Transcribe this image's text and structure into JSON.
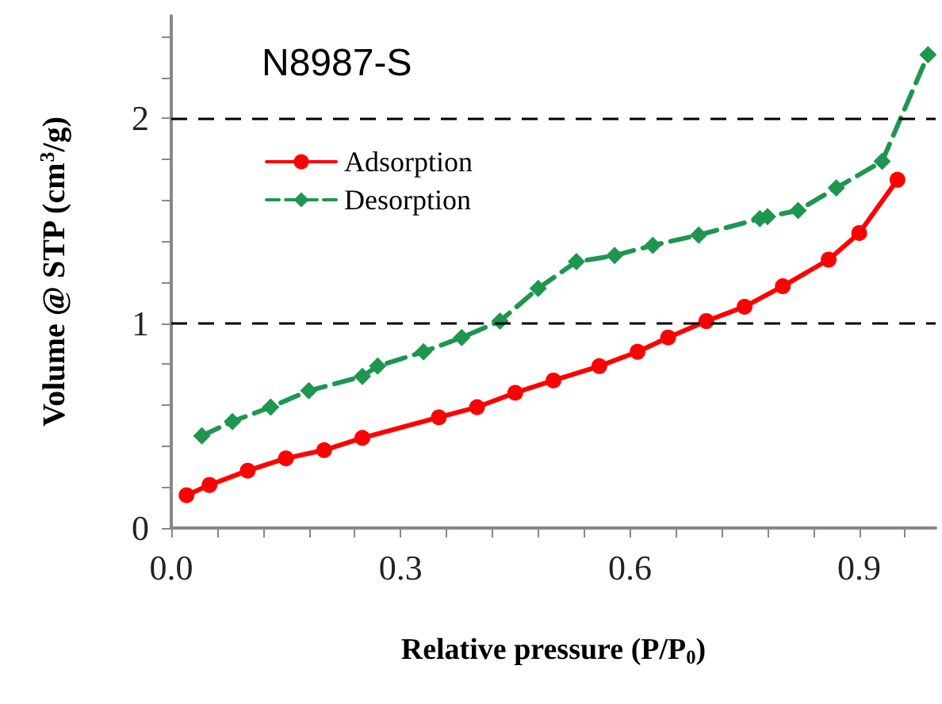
{
  "chart_data": {
    "type": "line",
    "annotations": [
      "N8987-S"
    ],
    "xlabel": "Relative pressure (P/P$_{0}$)",
    "ylabel": "Volume @ STP (cm$^{3}$/g)",
    "xlim": [
      0,
      1
    ],
    "xticks": [
      {
        "value": 0,
        "label": "0.0"
      },
      {
        "value": 0.06,
        "label": null
      },
      {
        "value": 0.12,
        "label": null
      },
      {
        "value": 0.18,
        "label": null
      },
      {
        "value": 0.24,
        "label": null
      },
      {
        "value": 0.3,
        "label": "0.3"
      },
      {
        "value": 0.36,
        "label": null
      },
      {
        "value": 0.42,
        "label": null
      },
      {
        "value": 0.48,
        "label": null
      },
      {
        "value": 0.54,
        "label": null
      },
      {
        "value": 0.6,
        "label": "0.6"
      },
      {
        "value": 0.66,
        "label": null
      },
      {
        "value": 0.72,
        "label": null
      },
      {
        "value": 0.78,
        "label": null
      },
      {
        "value": 0.84,
        "label": null
      },
      {
        "value": 0.9,
        "label": "0.9"
      },
      {
        "value": 0.96,
        "label": null
      }
    ],
    "ylim": [
      0,
      2.5
    ],
    "yticks": [
      0,
      {
        "value": 0.2,
        "label": null
      },
      {
        "value": 0.4,
        "label": null
      },
      {
        "value": 0.6,
        "label": null
      },
      {
        "value": 0.8,
        "label": null
      },
      1,
      {
        "value": 1.2,
        "label": null
      },
      {
        "value": 1.4,
        "label": null
      },
      {
        "value": 1.6,
        "label": null
      },
      {
        "value": 1.8,
        "label": null
      },
      2,
      {
        "value": 2.2,
        "label": null
      },
      {
        "value": 2.4,
        "label": null
      }
    ],
    "grid": "y",
    "legend": "top left",
    "series": [
      {
        "name": "Adsorption",
        "color": "#ff0000",
        "marker": "circle",
        "line_style": "solid",
        "x": [
          0.02,
          0.05,
          0.1,
          0.15,
          0.2,
          0.25,
          0.35,
          0.4,
          0.45,
          0.5,
          0.56,
          0.61,
          0.65,
          0.7,
          0.75,
          0.8,
          0.86,
          0.9,
          0.95
        ],
        "values": [
          0.16,
          0.21,
          0.28,
          0.34,
          0.38,
          0.44,
          0.54,
          0.59,
          0.66,
          0.72,
          0.79,
          0.86,
          0.93,
          1.01,
          1.08,
          1.18,
          1.31,
          1.44,
          1.7
        ]
      },
      {
        "name": "Desorption",
        "color": "#1e9650",
        "marker": "diamond",
        "line_style": "dashed",
        "x": [
          0.04,
          0.08,
          0.13,
          0.18,
          0.25,
          0.27,
          0.33,
          0.38,
          0.43,
          0.48,
          0.53,
          0.58,
          0.63,
          0.69,
          0.77,
          0.78,
          0.82,
          0.87,
          0.93,
          0.99
        ],
        "values": [
          0.45,
          0.52,
          0.59,
          0.67,
          0.74,
          0.79,
          0.86,
          0.93,
          1.01,
          1.17,
          1.3,
          1.33,
          1.38,
          1.43,
          1.51,
          1.52,
          1.55,
          1.66,
          1.79,
          2.31
        ]
      }
    ]
  }
}
